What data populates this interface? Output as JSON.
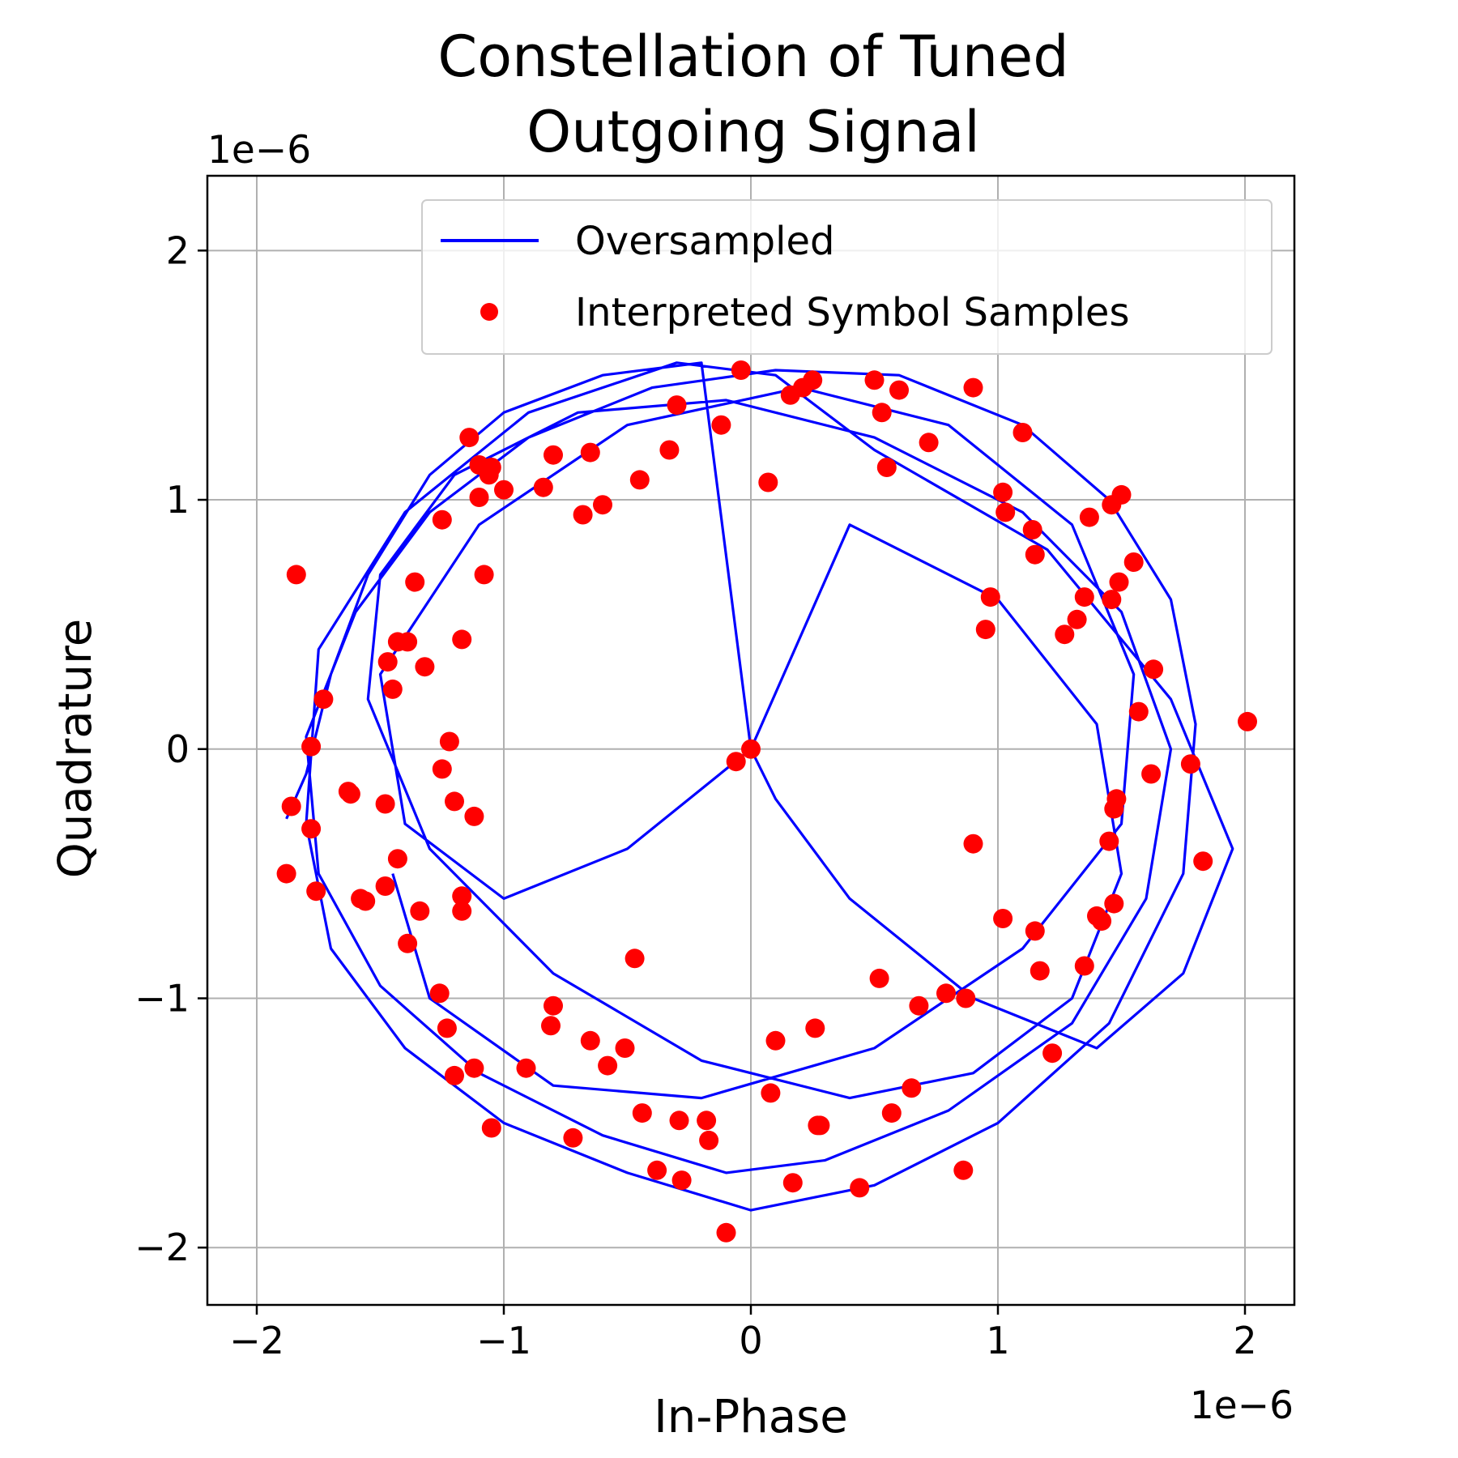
{
  "chart_data": {
    "type": "scatter",
    "title_lines": [
      "Constellation of Tuned",
      "Outgoing Signal"
    ],
    "xlabel": "In-Phase",
    "ylabel": "Quadrature",
    "x_offset_text": "1e−6",
    "y_offset_text": "1e−6",
    "xlim": [
      -2.2,
      2.2
    ],
    "ylim": [
      -2.23,
      2.3
    ],
    "xticks": [
      -2,
      -1,
      0,
      1,
      2
    ],
    "xtick_labels": [
      "−2",
      "−1",
      "0",
      "1",
      "2"
    ],
    "yticks": [
      -2,
      -1,
      0,
      1,
      2
    ],
    "ytick_labels": [
      "−2",
      "−1",
      "0",
      "1",
      "2"
    ],
    "grid": true,
    "legend_position": "top-right",
    "series": [
      {
        "name": "Oversampled",
        "kind": "line",
        "color": "#0000ff",
        "x": [
          -1.88,
          -1.8,
          -1.7,
          -1.55,
          -1.3,
          -1.0,
          -0.6,
          -0.2,
          0.0,
          0.1,
          0.4,
          0.9,
          1.4,
          1.75,
          1.95,
          1.7,
          1.2,
          0.5,
          0.1,
          -0.3,
          -0.9,
          -1.4,
          -1.75,
          -1.8,
          -1.7,
          -1.4,
          -1.0,
          -0.5,
          0.0,
          0.5,
          1.0,
          1.45,
          1.75,
          1.8,
          1.7,
          1.45,
          1.1,
          0.6,
          0.1,
          -0.4,
          -0.9,
          -1.3,
          -1.6,
          -1.8,
          -1.75,
          -1.5,
          -1.1,
          -0.6,
          -0.1,
          0.3,
          0.8,
          1.3,
          1.6,
          1.7,
          1.5,
          1.1,
          0.5,
          -0.1,
          -0.7,
          -1.2,
          -1.5,
          -1.55,
          -1.3,
          -0.8,
          -0.2,
          0.4,
          0.9,
          1.3,
          1.5,
          1.4,
          1.0,
          0.4,
          0.0,
          -0.5,
          -1.0,
          -1.4,
          -1.5,
          -1.1,
          -0.5,
          0.2,
          0.8,
          1.3,
          1.55,
          1.5,
          1.1,
          0.5,
          -0.2,
          -0.8,
          -1.3,
          -1.45
        ],
        "y": [
          -0.28,
          -0.1,
          0.3,
          0.7,
          1.1,
          1.35,
          1.5,
          1.55,
          0.0,
          -0.2,
          -0.6,
          -1.0,
          -1.2,
          -0.9,
          -0.4,
          0.2,
          0.8,
          1.2,
          1.5,
          1.55,
          1.35,
          0.95,
          0.4,
          -0.3,
          -0.8,
          -1.2,
          -1.5,
          -1.7,
          -1.85,
          -1.75,
          -1.5,
          -1.1,
          -0.5,
          0.1,
          0.6,
          1.0,
          1.3,
          1.5,
          1.52,
          1.45,
          1.25,
          0.95,
          0.55,
          0.05,
          -0.5,
          -0.95,
          -1.3,
          -1.55,
          -1.7,
          -1.65,
          -1.45,
          -1.1,
          -0.6,
          0.0,
          0.55,
          0.95,
          1.25,
          1.4,
          1.35,
          1.1,
          0.7,
          0.2,
          -0.4,
          -0.9,
          -1.25,
          -1.4,
          -1.3,
          -1.0,
          -0.5,
          0.1,
          0.6,
          0.9,
          0.0,
          -0.4,
          -0.6,
          -0.3,
          0.3,
          0.9,
          1.3,
          1.45,
          1.3,
          0.9,
          0.3,
          -0.3,
          -0.8,
          -1.2,
          -1.4,
          -1.35,
          -1.0,
          -0.5
        ]
      },
      {
        "name": "Interpreted Symbol Samples",
        "kind": "scatter",
        "color": "#ff0000",
        "x": [
          -1.84,
          -1.78,
          -1.73,
          -1.63,
          -1.58,
          -1.48,
          -1.47,
          -1.45,
          -1.43,
          -1.39,
          -1.36,
          -1.32,
          -1.25,
          -1.22,
          -1.17,
          -1.14,
          -1.1,
          -1.1,
          -1.06,
          -1.05,
          -1.08,
          -1.0,
          -0.84,
          -0.8,
          -0.68,
          -0.6,
          -0.65,
          -0.45,
          -0.33,
          -0.3,
          -0.12,
          -0.04,
          0.07,
          0.16,
          0.21,
          0.25,
          0.5,
          0.55,
          0.6,
          0.53,
          0.72,
          0.9,
          1.1,
          1.02,
          1.03,
          1.14,
          1.15,
          1.37,
          1.46,
          1.5,
          1.55,
          1.49,
          1.46,
          1.35,
          1.32,
          1.27,
          0.97,
          0.95,
          1.63,
          1.57,
          2.01,
          1.62,
          1.78,
          1.83,
          1.48,
          1.47,
          1.45,
          1.4,
          1.47,
          1.42,
          1.35,
          1.22,
          1.17,
          1.15,
          1.02,
          0.9,
          0.87,
          0.79,
          0.68,
          0.52,
          0.27,
          0.26,
          0.1,
          0.08,
          -0.17,
          -0.06,
          0.0,
          -0.47,
          -0.51,
          -0.58,
          -0.65,
          -0.8,
          -0.81,
          -0.91,
          -1.12,
          -1.2,
          -1.23,
          -1.26,
          -1.17,
          -1.17,
          -1.12,
          -1.2,
          -1.25,
          -1.05,
          -0.72,
          -0.44,
          -0.38,
          -0.28,
          -0.18,
          -0.29,
          -0.1,
          0.17,
          0.28,
          0.44,
          0.57,
          0.65,
          0.86,
          -1.34,
          -1.39,
          -1.48,
          -1.43,
          -1.56,
          -1.62,
          -1.78,
          -1.88,
          -1.86,
          -1.76
        ],
        "y": [
          0.7,
          0.01,
          0.2,
          -0.17,
          -0.6,
          -0.55,
          0.35,
          0.24,
          0.43,
          0.43,
          0.67,
          0.33,
          0.92,
          0.03,
          0.44,
          1.25,
          1.14,
          1.01,
          1.1,
          1.13,
          0.7,
          1.04,
          1.05,
          1.18,
          0.94,
          0.98,
          1.19,
          1.08,
          1.2,
          1.38,
          1.3,
          1.52,
          1.07,
          1.42,
          1.45,
          1.48,
          1.48,
          1.13,
          1.44,
          1.35,
          1.23,
          1.45,
          1.27,
          1.03,
          0.95,
          0.88,
          0.78,
          0.93,
          0.98,
          1.02,
          0.75,
          0.67,
          0.6,
          0.61,
          0.52,
          0.46,
          0.61,
          0.48,
          0.32,
          0.15,
          0.11,
          -0.1,
          -0.06,
          -0.45,
          -0.2,
          -0.24,
          -0.37,
          -0.67,
          -0.62,
          -0.69,
          -0.87,
          -1.22,
          -0.89,
          -0.73,
          -0.68,
          -0.38,
          -1.0,
          -0.98,
          -1.03,
          -0.92,
          -1.51,
          -1.12,
          -1.17,
          -1.38,
          -1.57,
          -0.05,
          0.0,
          -0.84,
          -1.2,
          -1.27,
          -1.17,
          -1.03,
          -1.11,
          -1.28,
          -1.28,
          -1.31,
          -1.12,
          -0.98,
          -0.59,
          -0.65,
          -0.27,
          -0.21,
          -0.08,
          -1.52,
          -1.56,
          -1.46,
          -1.69,
          -1.73,
          -1.49,
          -1.49,
          -1.94,
          -1.74,
          -1.51,
          -1.76,
          -1.46,
          -1.36,
          -1.69,
          -0.65,
          -0.78,
          -0.22,
          -0.44,
          -0.61,
          -0.18,
          -0.32,
          -0.5,
          -0.23,
          -0.57
        ]
      }
    ]
  }
}
